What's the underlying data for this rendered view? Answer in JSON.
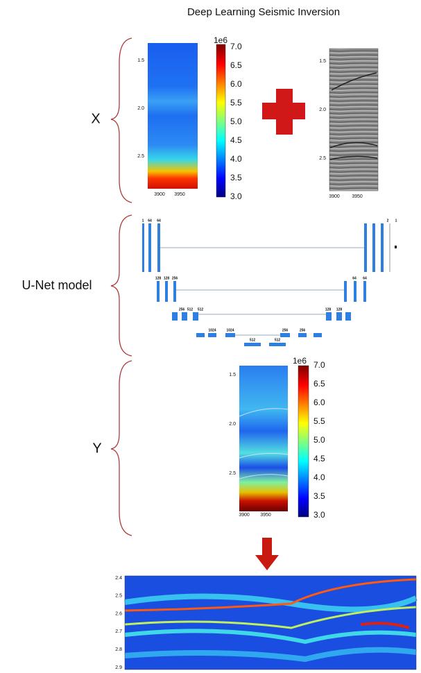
{
  "title": "Deep Learning Seismic Inversion",
  "labels": {
    "x": "X",
    "unet": "U-Net model",
    "y": "Y"
  },
  "input_velocity": {
    "colorbar_exponent": "1e6",
    "colorbar_ticks": [
      "7.0",
      "6.5",
      "6.0",
      "5.5",
      "5.0",
      "4.5",
      "4.0",
      "3.5",
      "3.0"
    ],
    "yticks": [
      "1.5",
      "2.0",
      "2.5"
    ],
    "xticks": [
      "3900",
      "3950"
    ]
  },
  "input_seismic": {
    "yticks": [
      "1.5",
      "2.0",
      "2.5"
    ],
    "xticks": [
      "3900",
      "3950"
    ]
  },
  "unet": {
    "channels": [
      "1",
      "64",
      "64",
      "128",
      "128",
      "256",
      "256",
      "512",
      "512",
      "1024",
      "1024",
      "512",
      "512",
      "256",
      "256",
      "128",
      "128",
      "64",
      "64",
      "2",
      "1"
    ]
  },
  "output_velocity": {
    "colorbar_exponent": "1e6",
    "colorbar_ticks": [
      "7.0",
      "6.5",
      "6.0",
      "5.5",
      "5.0",
      "4.5",
      "4.0",
      "3.5",
      "3.0"
    ],
    "yticks": [
      "1.5",
      "2.0",
      "2.5"
    ],
    "xticks": [
      "3900",
      "3950"
    ]
  },
  "section": {
    "yticks": [
      "2.4",
      "2.5",
      "2.6",
      "2.7",
      "2.8",
      "2.9"
    ]
  }
}
